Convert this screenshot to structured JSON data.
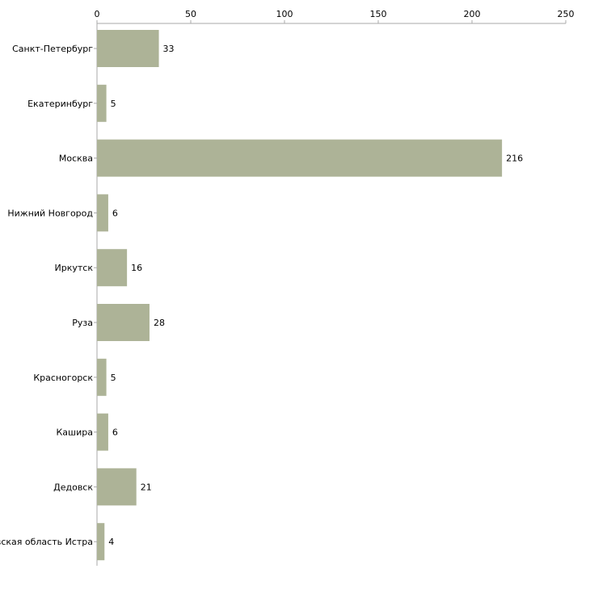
{
  "chart_data": {
    "type": "bar",
    "orientation": "horizontal",
    "title": "",
    "xlabel": "",
    "ylabel": "",
    "xlim": [
      0,
      250
    ],
    "x_ticks": [
      0,
      50,
      100,
      150,
      200,
      250
    ],
    "x_tick_labels": [
      "0",
      "50",
      "100",
      "150",
      "200",
      "250"
    ],
    "grid": false,
    "legend": "none",
    "categories": [
      "Санкт-Петербург",
      "Екатеринбург",
      "Москва",
      "Нижний Новгород",
      "Иркутск",
      "Руза",
      "Красногорск",
      "Кашира",
      "Дедовск",
      "Московская область Истра"
    ],
    "values": [
      33,
      5,
      216,
      6,
      16,
      28,
      5,
      6,
      21,
      4
    ],
    "data_labels": [
      "33",
      "5",
      "216",
      "6",
      "16",
      "28",
      "5",
      "6",
      "21",
      "4"
    ],
    "colors": {
      "bar": "#adb397",
      "axis": "#aaaaaa",
      "text": "#000000"
    }
  }
}
